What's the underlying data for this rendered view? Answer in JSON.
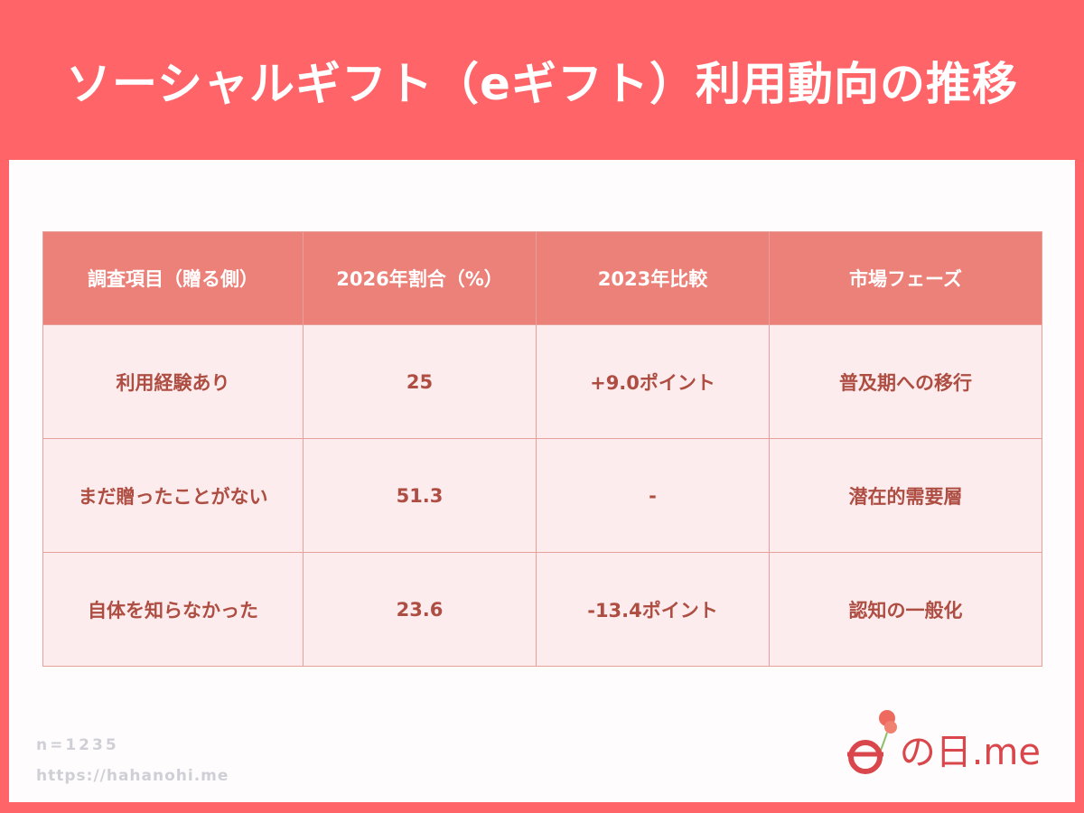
{
  "title": "ソーシャルギフト（eギフト）利用動向の推移",
  "table": {
    "headers": [
      "調査項目（贈る側）",
      "2026年割合（%）",
      "2023年比較",
      "市場フェーズ"
    ],
    "rows": [
      [
        "利用経験あり",
        "25",
        "+9.0ポイント",
        "普及期への移行"
      ],
      [
        "まだ贈ったことがない",
        "51.3",
        "-",
        "潜在的需要層"
      ],
      [
        "自体を知らなかった",
        "23.6",
        "-13.4ポイント",
        "認知の一般化"
      ]
    ]
  },
  "footer": {
    "sample": "n=1235",
    "url": "https://hahanohi.me"
  },
  "logo": {
    "text": "の日.me",
    "brand": "母の日.me"
  },
  "colors": {
    "accent": "#ff6469",
    "header": "#ec8179",
    "row": "#fdeced",
    "text": "#ae4e43"
  }
}
